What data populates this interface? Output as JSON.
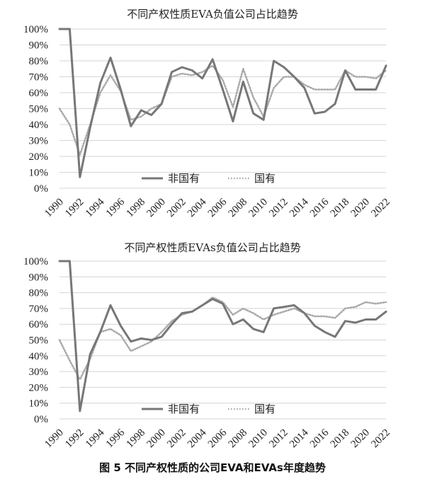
{
  "caption": "图 5  不同产权性质的公司EVA和EVAs年度趋势",
  "chart_data": [
    {
      "type": "line",
      "title": "不同产权性质EVA负值公司占比趋势",
      "x": [
        1990,
        1991,
        1992,
        1993,
        1994,
        1995,
        1996,
        1997,
        1998,
        1999,
        2000,
        2001,
        2002,
        2003,
        2004,
        2005,
        2006,
        2007,
        2008,
        2009,
        2010,
        2011,
        2012,
        2013,
        2014,
        2015,
        2016,
        2017,
        2018,
        2019,
        2020,
        2021,
        2022
      ],
      "xticks": [
        "1990",
        "1992",
        "1994",
        "1996",
        "1998",
        "2000",
        "2002",
        "2004",
        "2006",
        "2008",
        "2010",
        "2012",
        "2014",
        "2016",
        "2018",
        "2020",
        "2022"
      ],
      "yticks": [
        "0%",
        "10%",
        "20%",
        "30%",
        "40%",
        "50%",
        "60%",
        "70%",
        "80%",
        "90%",
        "100%"
      ],
      "ylim": [
        0,
        100
      ],
      "grid": "horizontal",
      "legend_position": "bottom-center",
      "series": [
        {
          "name": "非国有",
          "style": "solid",
          "color": "#777777",
          "values": [
            100,
            100,
            7,
            38,
            66,
            82,
            62,
            39,
            49,
            46,
            53,
            73,
            76,
            74,
            69,
            81,
            62,
            42,
            67,
            47,
            43,
            80,
            76,
            70,
            63,
            47,
            48,
            53,
            74,
            62,
            62,
            62,
            77
          ]
        },
        {
          "name": "国有",
          "style": "dotted",
          "color": "#aaaaaa",
          "values": [
            50,
            40,
            21,
            40,
            60,
            71,
            61,
            43,
            45,
            50,
            53,
            70,
            72,
            71,
            73,
            77,
            68,
            51,
            75,
            57,
            45,
            63,
            70,
            70,
            65,
            62,
            62,
            62,
            74,
            70,
            70,
            69,
            74
          ]
        }
      ]
    },
    {
      "type": "line",
      "title": "不同产权性质EVAs负值公司占比趋势",
      "x": [
        1990,
        1991,
        1992,
        1993,
        1994,
        1995,
        1996,
        1997,
        1998,
        1999,
        2000,
        2001,
        2002,
        2003,
        2004,
        2005,
        2006,
        2007,
        2008,
        2009,
        2010,
        2011,
        2012,
        2013,
        2014,
        2015,
        2016,
        2017,
        2018,
        2019,
        2020,
        2021,
        2022
      ],
      "xticks": [
        "1990",
        "1992",
        "1994",
        "1996",
        "1998",
        "2000",
        "2002",
        "2004",
        "2006",
        "2008",
        "2010",
        "2012",
        "2014",
        "2016",
        "2018",
        "2020",
        "2022"
      ],
      "yticks": [
        "0%",
        "10%",
        "20%",
        "30%",
        "40%",
        "50%",
        "60%",
        "70%",
        "80%",
        "90%",
        "100%"
      ],
      "ylim": [
        0,
        100
      ],
      "grid": "horizontal",
      "legend_position": "bottom-center",
      "series": [
        {
          "name": "非国有",
          "style": "solid",
          "color": "#777777",
          "values": [
            100,
            100,
            5,
            41,
            55,
            72,
            59,
            49,
            51,
            50,
            52,
            60,
            67,
            68,
            72,
            76,
            73,
            60,
            63,
            57,
            55,
            70,
            71,
            72,
            67,
            59,
            55,
            52,
            62,
            61,
            63,
            63,
            68
          ]
        },
        {
          "name": "国有",
          "style": "dotted",
          "color": "#aaaaaa",
          "values": [
            50,
            37,
            25,
            38,
            55,
            57,
            53,
            43,
            46,
            49,
            55,
            62,
            66,
            68,
            72,
            77,
            74,
            66,
            70,
            67,
            63,
            66,
            68,
            70,
            67,
            65,
            65,
            64,
            70,
            71,
            74,
            73,
            74
          ]
        }
      ]
    }
  ]
}
